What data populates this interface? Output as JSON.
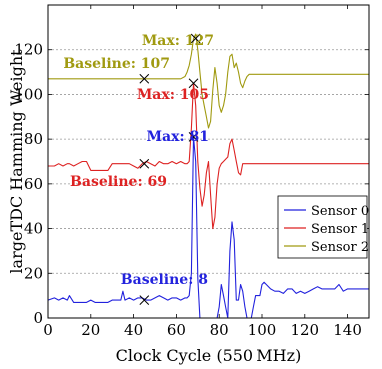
{
  "chart_data": {
    "type": "line",
    "xlabel": "Clock Cycle (550 MHz)",
    "ylabel": "largeTDC Hamming Weight",
    "xlim": [
      0,
      150
    ],
    "ylim": [
      0,
      140
    ],
    "xticks": [
      0,
      20,
      40,
      60,
      80,
      100,
      120,
      140
    ],
    "yticks": [
      0,
      20,
      40,
      60,
      80,
      100,
      120
    ],
    "grid": "y-dashed",
    "legend": "right",
    "series": [
      {
        "name": "Sensor 0",
        "color": "#2222dd",
        "x": [
          0,
          3,
          5,
          7,
          9,
          10,
          12,
          14,
          16,
          18,
          20,
          22,
          24,
          26,
          28,
          30,
          32,
          34,
          35,
          36,
          38,
          40,
          42,
          44,
          46,
          48,
          50,
          52,
          54,
          56,
          58,
          60,
          62,
          64,
          65,
          66,
          67,
          68,
          69,
          70,
          71,
          72,
          73,
          74,
          75,
          76,
          77,
          78,
          79,
          80,
          81,
          82,
          83,
          84,
          85,
          86,
          87,
          88,
          89,
          90,
          91,
          92,
          93,
          94,
          95,
          96,
          97,
          98,
          99,
          100,
          101,
          102,
          104,
          106,
          108,
          110,
          112,
          114,
          116,
          118,
          120,
          122,
          124,
          126,
          128,
          130,
          132,
          134,
          136,
          138,
          140,
          142,
          144,
          146,
          148,
          150
        ],
        "y": [
          8,
          9,
          8,
          9,
          8,
          10,
          7,
          7,
          7,
          7,
          8,
          7,
          7,
          7,
          7,
          8,
          8,
          8,
          12,
          8,
          9,
          8,
          9,
          9,
          8,
          8,
          9,
          10,
          9,
          8,
          9,
          9,
          8,
          9,
          9,
          10,
          20,
          81,
          70,
          18,
          0,
          0,
          0,
          0,
          0,
          0,
          0,
          0,
          0,
          5,
          15,
          10,
          5,
          0,
          30,
          43,
          35,
          8,
          8,
          15,
          12,
          5,
          0,
          0,
          0,
          5,
          10,
          10,
          10,
          15,
          16,
          15,
          13,
          12,
          12,
          11,
          13,
          13,
          11,
          12,
          11,
          12,
          13,
          14,
          13,
          13,
          13,
          13,
          15,
          12,
          13,
          13,
          13,
          13,
          13,
          13
        ]
      },
      {
        "name": "Sensor 1",
        "color": "#dd2222",
        "x": [
          0,
          3,
          5,
          7,
          9,
          10,
          12,
          14,
          16,
          18,
          20,
          22,
          24,
          26,
          28,
          30,
          32,
          34,
          36,
          38,
          40,
          42,
          44,
          46,
          48,
          50,
          52,
          54,
          56,
          58,
          60,
          62,
          64,
          65,
          66,
          67,
          68,
          69,
          70,
          71,
          72,
          73,
          74,
          75,
          76,
          77,
          78,
          79,
          80,
          81,
          82,
          83,
          84,
          85,
          86,
          87,
          88,
          89,
          90,
          91,
          92,
          93,
          94,
          95,
          96,
          97,
          98,
          99,
          100,
          102,
          104,
          106,
          108,
          110,
          112,
          114,
          116,
          118,
          120,
          122,
          124,
          126,
          128,
          130,
          132,
          134,
          136,
          138,
          140,
          142,
          144,
          146,
          148,
          150
        ],
        "y": [
          68,
          68,
          69,
          68,
          69,
          69,
          68,
          69,
          70,
          70,
          66,
          66,
          66,
          66,
          66,
          69,
          69,
          69,
          69,
          69,
          68,
          67,
          69,
          70,
          69,
          68,
          70,
          69,
          69,
          70,
          69,
          70,
          69,
          69,
          70,
          85,
          105,
          95,
          70,
          58,
          50,
          55,
          65,
          70,
          55,
          40,
          45,
          60,
          67,
          69,
          70,
          71,
          72,
          78,
          80,
          75,
          70,
          65,
          64,
          69,
          69,
          69,
          69,
          69,
          69,
          69,
          69,
          69,
          69,
          69,
          69,
          69,
          69,
          69,
          69,
          69,
          69,
          69,
          69,
          69,
          69,
          69,
          69,
          69,
          69,
          69,
          69,
          69,
          69,
          69,
          69,
          69,
          69,
          69
        ]
      },
      {
        "name": "Sensor 2",
        "color": "#a09a10",
        "x": [
          0,
          5,
          10,
          15,
          20,
          25,
          30,
          35,
          40,
          45,
          50,
          55,
          60,
          62,
          64,
          65,
          66,
          67,
          68,
          69,
          70,
          71,
          72,
          73,
          74,
          75,
          76,
          77,
          78,
          79,
          80,
          81,
          82,
          83,
          84,
          85,
          86,
          87,
          88,
          89,
          90,
          91,
          92,
          93,
          94,
          95,
          96,
          97,
          98,
          99,
          100,
          105,
          110,
          115,
          120,
          125,
          130,
          135,
          140,
          145,
          150
        ],
        "y": [
          107,
          107,
          107,
          107,
          107,
          107,
          107,
          107,
          107,
          107,
          107,
          107,
          107,
          107,
          108,
          110,
          113,
          118,
          125,
          127,
          120,
          110,
          100,
          95,
          90,
          85,
          88,
          102,
          112,
          105,
          95,
          92,
          95,
          100,
          110,
          117,
          118,
          112,
          114,
          110,
          105,
          103,
          106,
          108,
          109,
          109,
          109,
          109,
          109,
          109,
          109,
          109,
          109,
          109,
          109,
          109,
          109,
          109,
          109,
          109,
          109
        ]
      }
    ],
    "annotations": [
      {
        "text": "Max: 127",
        "color": "#a09a10",
        "marker": [
          69,
          125
        ]
      },
      {
        "text": "Baseline: 107",
        "color": "#a09a10",
        "marker": [
          45,
          107
        ]
      },
      {
        "text": "Max: 105",
        "color": "#dd2222",
        "marker": [
          68,
          105
        ]
      },
      {
        "text": "Max: 81",
        "color": "#2222dd",
        "marker": [
          68,
          81
        ]
      },
      {
        "text": "Baseline: 69",
        "color": "#dd2222",
        "marker": [
          45,
          69
        ]
      },
      {
        "text": "Baseline: 8",
        "color": "#2222dd",
        "marker": [
          45,
          8
        ]
      }
    ]
  }
}
